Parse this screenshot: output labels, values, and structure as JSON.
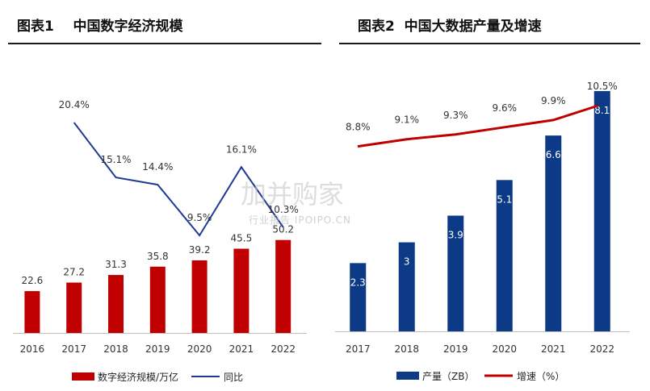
{
  "chart_data": [
    {
      "type": "bar",
      "title": "图表1    中国数字经济规模",
      "categories": [
        "2016",
        "2017",
        "2018",
        "2019",
        "2020",
        "2021",
        "2022"
      ],
      "series": [
        {
          "name": "数字经济规模/万亿",
          "kind": "bar",
          "values": [
            22.6,
            27.2,
            31.3,
            35.8,
            39.2,
            45.5,
            50.2
          ]
        },
        {
          "name": "同比",
          "kind": "line",
          "values": [
            null,
            20.4,
            15.1,
            14.4,
            9.5,
            16.1,
            10.3
          ],
          "labels": [
            "",
            "20.4%",
            "15.1%",
            "14.4%",
            "9.5%",
            "16.1%",
            "10.3%"
          ]
        }
      ],
      "bar_labels": [
        "22.6",
        "27.2",
        "31.3",
        "35.8",
        "39.2",
        "45.5",
        "50.2"
      ],
      "colors": {
        "bar": "#c00000",
        "line": "#1f3a93"
      },
      "legend": "bottom"
    },
    {
      "type": "bar",
      "title": "图表2  中国大数据产量及增速",
      "categories": [
        "2017",
        "2018",
        "2019",
        "2020",
        "2021",
        "2022"
      ],
      "series": [
        {
          "name": "产量（ZB）",
          "kind": "bar",
          "values": [
            2.3,
            3,
            3.9,
            5.1,
            6.6,
            8.1
          ]
        },
        {
          "name": "增速（%）",
          "kind": "line",
          "values": [
            8.8,
            9.1,
            9.3,
            9.6,
            9.9,
            10.5
          ],
          "labels": [
            "8.8%",
            "9.1%",
            "9.3%",
            "9.6%",
            "9.9%",
            "10.5%"
          ]
        }
      ],
      "bar_labels": [
        "2.3",
        "3",
        "3.9",
        "5.1",
        "6.6",
        "8.1"
      ],
      "colors": {
        "bar": "#0d3a86",
        "line": "#c00000"
      },
      "legend": "bottom"
    }
  ],
  "watermark": {
    "main": "加并购家",
    "sub": "行业报告 IPOIPO.CN"
  }
}
